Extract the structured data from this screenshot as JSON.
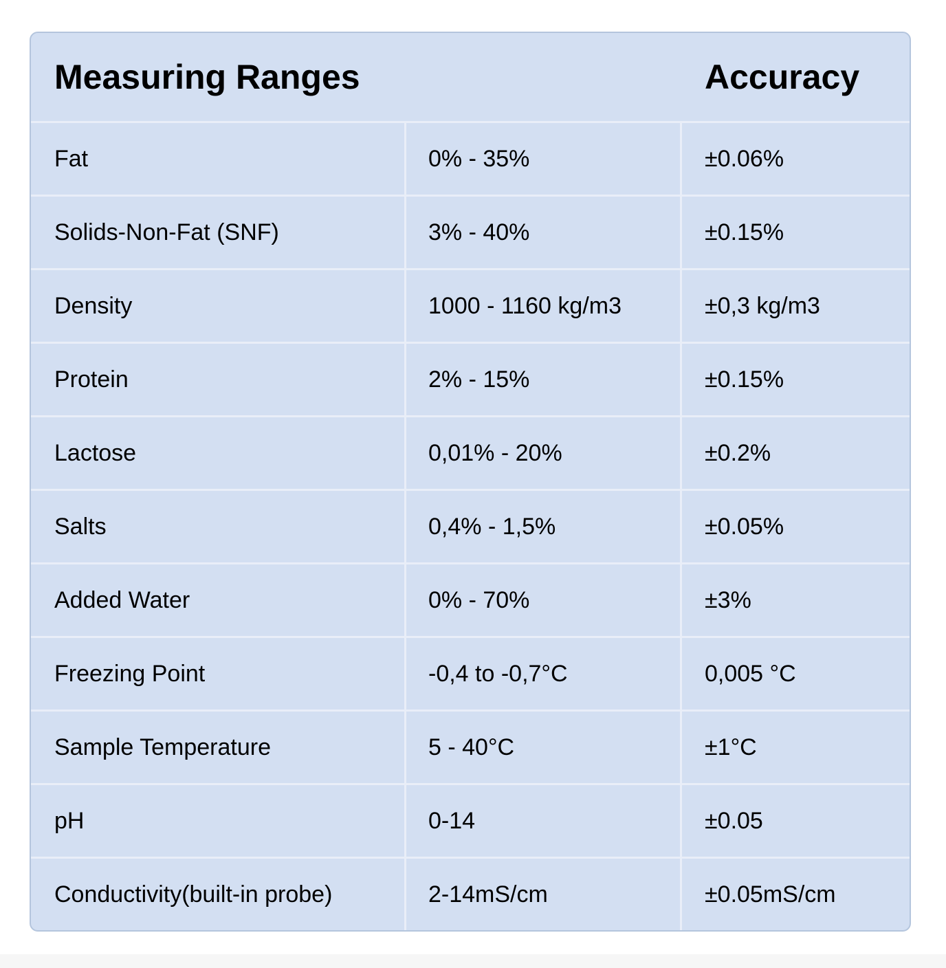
{
  "header": {
    "measuring_ranges": "Measuring Ranges",
    "accuracy": "Accuracy"
  },
  "rows": [
    {
      "parameter": "Fat",
      "range": "0% - 35%",
      "accuracy": "±0.06%"
    },
    {
      "parameter": "Solids-Non-Fat (SNF)",
      "range": "3% - 40%",
      "accuracy": "±0.15%"
    },
    {
      "parameter": "Density",
      "range": "1000 - 1160 kg/m3",
      "accuracy": "±0,3 kg/m3"
    },
    {
      "parameter": "Protein",
      "range": "2% - 15%",
      "accuracy": "±0.15%"
    },
    {
      "parameter": "Lactose",
      "range": "0,01% - 20%",
      "accuracy": "±0.2%"
    },
    {
      "parameter": "Salts",
      "range": "0,4% - 1,5%",
      "accuracy": "±0.05%"
    },
    {
      "parameter": "Added Water",
      "range": "0% - 70%",
      "accuracy": "±3%"
    },
    {
      "parameter": "Freezing Point",
      "range": "-0,4 to -0,7°C",
      "accuracy": "0,005 °C"
    },
    {
      "parameter": "Sample Temperature",
      "range": "5 - 40°C",
      "accuracy": "±1°C"
    },
    {
      "parameter": "pH",
      "range": "0-14",
      "accuracy": "±0.05"
    },
    {
      "parameter": "Conductivity(built-in probe)",
      "range": "2-14mS/cm",
      "accuracy": "±0.05mS/cm"
    }
  ],
  "colors": {
    "card_background": "#d3dff2",
    "card_border": "#b4c5dd",
    "row_divider": "#e9eef8",
    "text": "#000000"
  }
}
